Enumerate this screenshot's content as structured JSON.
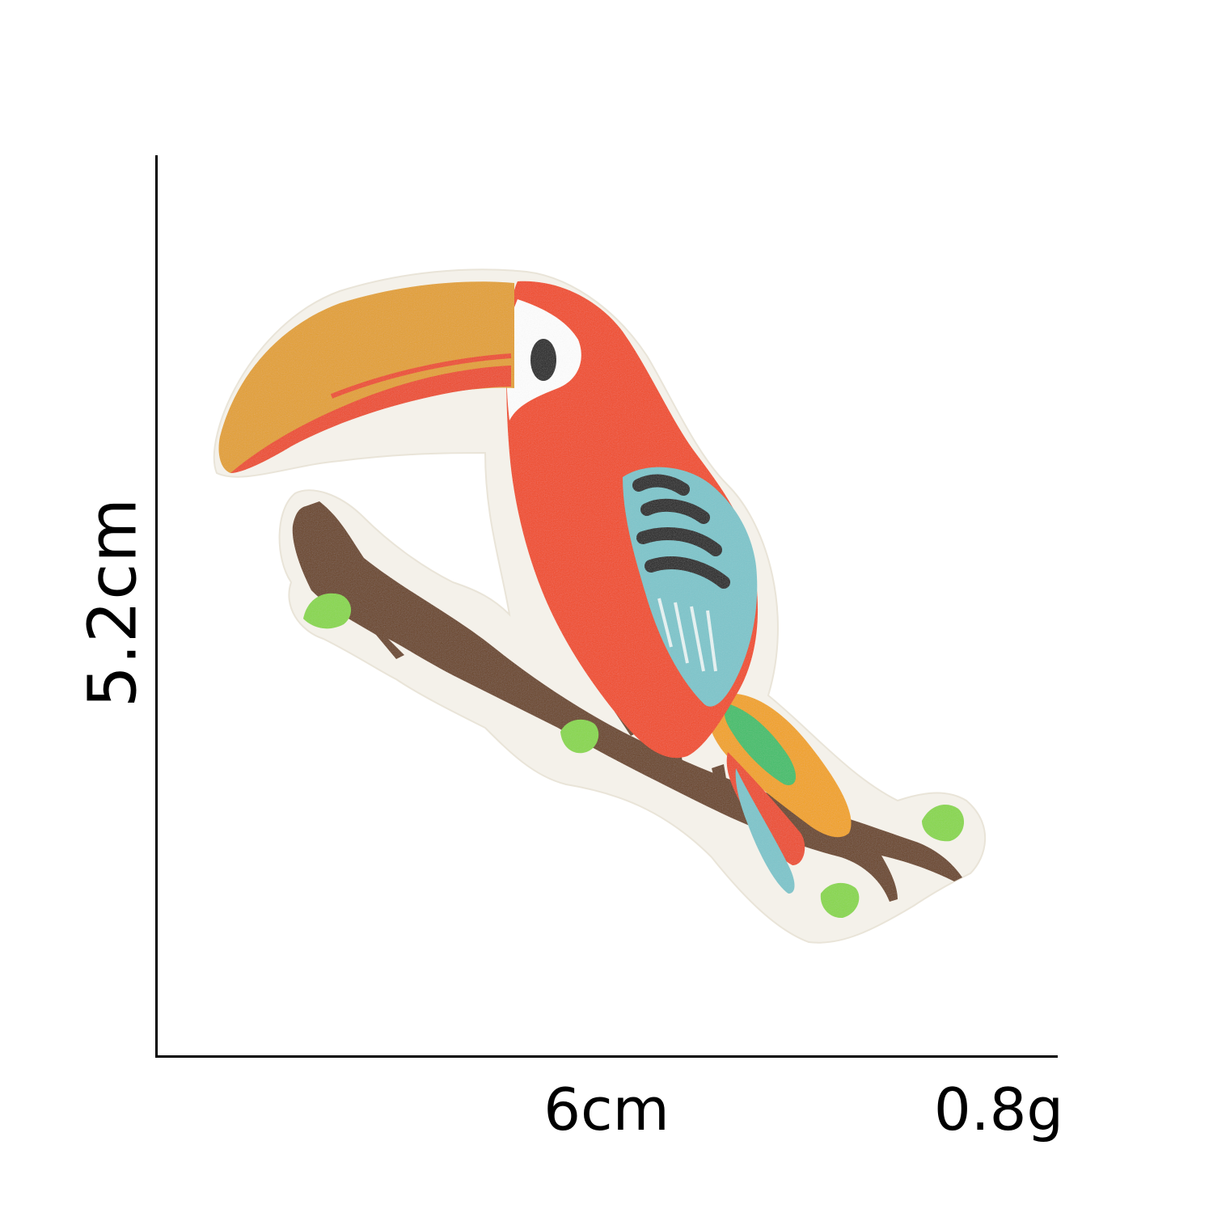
{
  "dimensions": {
    "height_label": "5.2cm",
    "width_label": "6cm",
    "weight_label": "0.8g"
  },
  "patch": {
    "subject": "toucan-on-branch",
    "colors": {
      "border": "#f4f1ea",
      "beak": "#e4a02c",
      "beak_stripe": "#ee4a25",
      "body": "#f24a22",
      "face": "#ffffff",
      "eye": "#1a1a1a",
      "wing": "#7dc6cc",
      "wing_marks": "#1e1e1e",
      "tail_yellow": "#f3a318",
      "branch": "#6b4221",
      "leaf": "#88d84a"
    }
  }
}
